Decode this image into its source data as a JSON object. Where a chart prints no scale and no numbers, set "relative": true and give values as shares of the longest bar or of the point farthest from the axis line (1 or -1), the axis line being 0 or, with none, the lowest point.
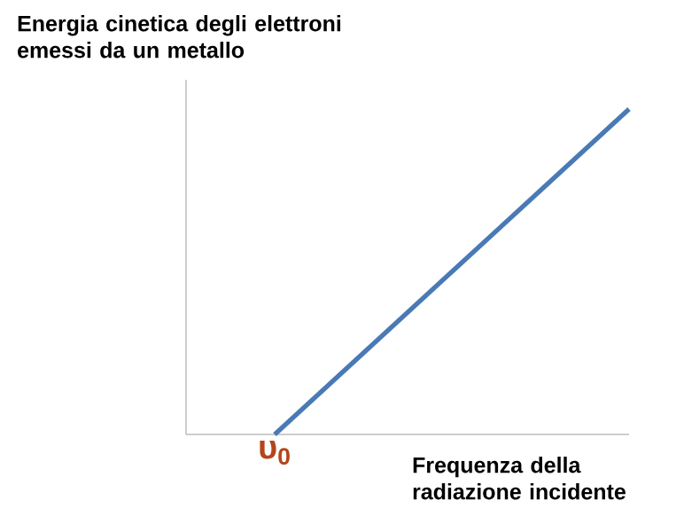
{
  "chart_data": {
    "type": "line",
    "relative": true,
    "ylabel": "Energia cinetica degli elettroni emessi da un metallo",
    "xlabel": "Frequenza della radiazione incidente",
    "categories": [
      null,
      null,
      null,
      null,
      null,
      null
    ],
    "series": [
      {
        "color": "#4a7ab5",
        "values": [
          null,
          0,
          0.25,
          0.5,
          0.75,
          1
        ]
      }
    ],
    "annotations": [
      {
        "text": "υ$_{0}$",
        "y": 0
      }
    ],
    "marker": "none",
    "line_style": "solid"
  }
}
